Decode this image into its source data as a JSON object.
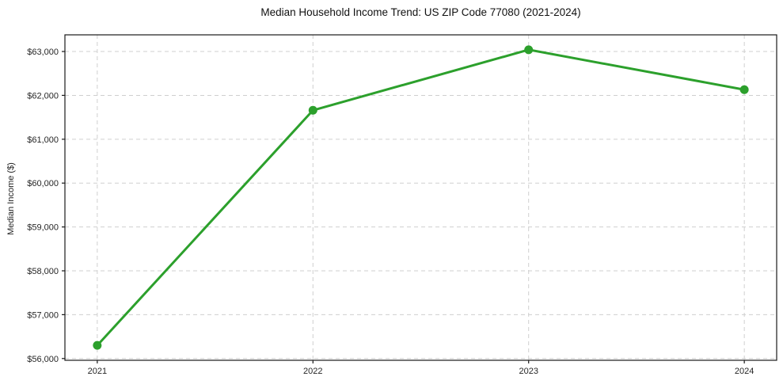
{
  "chart_data": {
    "type": "line",
    "title": "Median Household Income Trend: US ZIP Code 77080 (2021-2024)",
    "xlabel": "",
    "ylabel": "Median Income ($)",
    "x": [
      2021,
      2022,
      2023,
      2024
    ],
    "x_tick_labels": [
      "2021",
      "2022",
      "2023",
      "2024"
    ],
    "series": [
      {
        "name": "Median Household Income",
        "values": [
          56300,
          61660,
          63040,
          62130
        ]
      }
    ],
    "y_ticks": [
      56000,
      57000,
      58000,
      59000,
      60000,
      61000,
      62000,
      63000
    ],
    "y_tick_labels": [
      "$56,000",
      "$57,000",
      "$58,000",
      "$59,000",
      "$60,000",
      "$61,000",
      "$62,000",
      "$63,000"
    ],
    "xlim": [
      2020.85,
      2024.15
    ],
    "ylim": [
      55960,
      63380
    ],
    "grid": true,
    "grid_style": "dashed",
    "legend": "none",
    "colors": {
      "line": "#2ca02c",
      "marker": "#2ca02c",
      "grid": "#cfcfcf",
      "spine": "#1a1a1a",
      "tick_text": "#262626",
      "background": "#ffffff"
    },
    "line_width": 3,
    "marker_radius": 5.5
  }
}
